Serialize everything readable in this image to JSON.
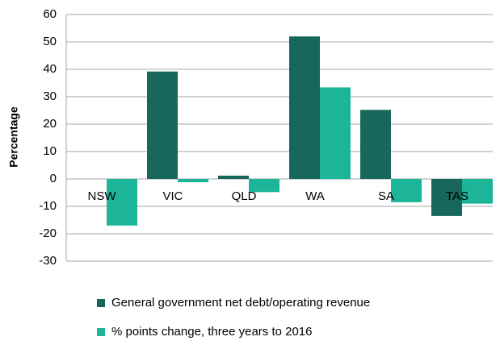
{
  "chart_data": {
    "type": "bar",
    "categories": [
      "NSW",
      "VIC",
      "QLD",
      "WA",
      "SA",
      "TAS"
    ],
    "series": [
      {
        "name": "General government net debt/operating revenue",
        "color": "#17675c",
        "values": [
          0,
          39.2,
          1.2,
          52,
          25.2,
          -13.5
        ]
      },
      {
        "name": "% points change, three years to 2016",
        "color": "#1db598",
        "values": [
          -17,
          -1.2,
          -4.8,
          33.4,
          -8.5,
          -9
        ]
      }
    ],
    "ylabel": "Percentage",
    "ylim": [
      -30,
      60
    ],
    "yticks": [
      -30,
      -20,
      -10,
      0,
      10,
      20,
      30,
      40,
      50,
      60
    ],
    "grid": true,
    "legend": "bottom"
  }
}
